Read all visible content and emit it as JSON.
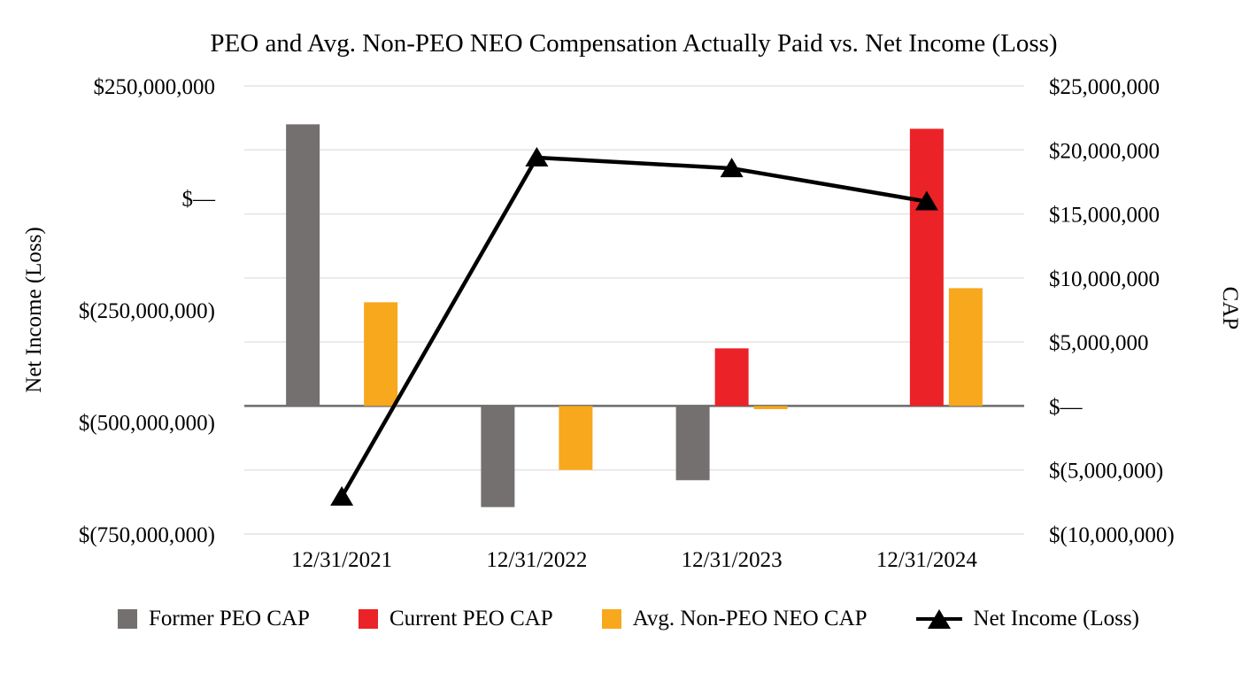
{
  "chart_data": {
    "type": "bar+line",
    "title": "PEO and Avg. Non-PEO NEO Compensation Actually Paid vs. Net Income (Loss)",
    "categories": [
      "12/31/2021",
      "12/31/2022",
      "12/31/2023",
      "12/31/2024"
    ],
    "bar_series": [
      {
        "key": "former-peo-cap",
        "name": "Former PEO CAP",
        "axis": "right",
        "color": "#757070",
        "values": [
          22000000,
          -7900000,
          -5800000,
          null
        ]
      },
      {
        "key": "current-peo-cap",
        "name": "Current PEO CAP",
        "axis": "right",
        "color": "#EB2227",
        "values": [
          null,
          null,
          4500000,
          21650000
        ]
      },
      {
        "key": "avg-non-peo-neo-cap",
        "name": "Avg. Non-PEO NEO CAP",
        "axis": "right",
        "color": "#F7A81C",
        "values": [
          8100000,
          -5000000,
          -250000,
          9200000
        ]
      }
    ],
    "line_series": {
      "key": "net-income-loss",
      "name": "Net Income (Loss)",
      "axis": "left",
      "color": "#000000",
      "marker": "triangle",
      "values": [
        -667000000,
        90000000,
        66000000,
        -8000000
      ]
    },
    "left_axis": {
      "title": "Net Income (Loss)",
      "max": 250000000,
      "min": -750000000,
      "ticks": [
        {
          "label": "$250,000,000",
          "value": 250000000
        },
        {
          "label": "$—",
          "value": 0
        },
        {
          "label": "$(250,000,000)",
          "value": -250000000
        },
        {
          "label": "$(500,000,000)",
          "value": -500000000
        },
        {
          "label": "$(750,000,000)",
          "value": -750000000
        }
      ]
    },
    "right_axis": {
      "title": "CAP",
      "max": 25000000,
      "min": -10000000,
      "ticks": [
        {
          "label": "$25,000,000",
          "value": 25000000
        },
        {
          "label": "$20,000,000",
          "value": 20000000
        },
        {
          "label": "$15,000,000",
          "value": 15000000
        },
        {
          "label": "$10,000,000",
          "value": 10000000
        },
        {
          "label": "$5,000,000",
          "value": 5000000
        },
        {
          "label": "$—",
          "value": 0
        },
        {
          "label": "$(5,000,000)",
          "value": -5000000
        },
        {
          "label": "$(10,000,000)",
          "value": -10000000
        }
      ]
    },
    "grid": "horizontal-only",
    "gridline_color": "#E4E4E4",
    "zero_line_color": "#6B6B6B",
    "legend_position": "bottom"
  }
}
